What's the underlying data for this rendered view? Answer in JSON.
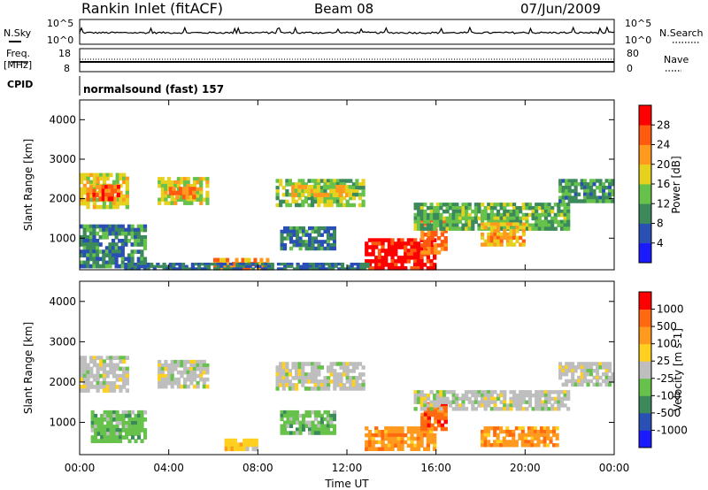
{
  "header": {
    "station": "Rankin Inlet (fitACF)",
    "beam": "Beam 08",
    "date": "07/Jun/2009"
  },
  "strip": {
    "nsky_label": "N.Sky",
    "nsearch_label": "N.Search",
    "nsky_ticks": [
      "10^5",
      "10^0"
    ],
    "nsearch_ticks": [
      "10^5",
      "10^0"
    ],
    "freq_label_1": "Freq.",
    "freq_label_2": "[MHz]",
    "freq_ticks": [
      "18",
      "8"
    ],
    "nave_label": "Nave",
    "nave_ticks": [
      "80",
      "0"
    ],
    "cpid_label": "CPID",
    "cpid_text": "normalsound (fast) 157"
  },
  "colors": {
    "power": [
      "#1a1aff",
      "#2a4fb5",
      "#3c8a5c",
      "#66c24a",
      "#e6d21e",
      "#ff9a1e",
      "#ff5a10",
      "#ff0000"
    ],
    "velocity": [
      "#ff0000",
      "#ff6a10",
      "#ff9a1e",
      "#ffd020",
      "#bebebe",
      "#66c24a",
      "#3c8a5c",
      "#2a4fb5",
      "#1a1aff"
    ]
  },
  "chart_data": [
    {
      "type": "heatmap",
      "title": "",
      "ylabel": "Slant Range [km]",
      "xlabel": "",
      "ylim": [
        200,
        4500
      ],
      "yticks": [
        "4000",
        "3000",
        "2000",
        "1000"
      ],
      "yvalues": [
        4000,
        3000,
        2000,
        1000
      ],
      "xlim": [
        0,
        24
      ],
      "colorbar": {
        "label": "Power [dB]",
        "ticks": [
          "28",
          "24",
          "20",
          "16",
          "12",
          "8",
          "4"
        ],
        "range": [
          0,
          32
        ]
      },
      "regions": [
        {
          "t": [
            0.0,
            2.2
          ],
          "r": [
            1750,
            2650
          ],
          "v": 18
        },
        {
          "t": [
            0.3,
            1.8
          ],
          "r": [
            1950,
            2350
          ],
          "v": 26
        },
        {
          "t": [
            3.5,
            5.8
          ],
          "r": [
            1850,
            2550
          ],
          "v": 17
        },
        {
          "t": [
            4.0,
            5.2
          ],
          "r": [
            2000,
            2300
          ],
          "v": 24
        },
        {
          "t": [
            8.8,
            12.8
          ],
          "r": [
            1800,
            2500
          ],
          "v": 14
        },
        {
          "t": [
            9.5,
            12.2
          ],
          "r": [
            2050,
            2350
          ],
          "v": 19
        },
        {
          "t": [
            12.8,
            16.0
          ],
          "r": [
            200,
            1000
          ],
          "v": 30
        },
        {
          "t": [
            15.3,
            16.5
          ],
          "r": [
            600,
            1500
          ],
          "v": 24
        },
        {
          "t": [
            15.0,
            22.0
          ],
          "r": [
            1200,
            1900
          ],
          "v": 13
        },
        {
          "t": [
            18.0,
            20.0
          ],
          "r": [
            800,
            1400
          ],
          "v": 21
        },
        {
          "t": [
            21.5,
            24.0
          ],
          "r": [
            1900,
            2500
          ],
          "v": 11
        },
        {
          "t": [
            9.0,
            11.5
          ],
          "r": [
            700,
            1300
          ],
          "v": 9
        },
        {
          "t": [
            0.0,
            3.0
          ],
          "r": [
            250,
            1350
          ],
          "v": 10
        },
        {
          "t": [
            6.0,
            8.5
          ],
          "r": [
            200,
            500
          ],
          "v": 23
        },
        {
          "t": [
            2.0,
            13.0
          ],
          "r": [
            200,
            380
          ],
          "v": 8
        }
      ]
    },
    {
      "type": "heatmap",
      "title": "",
      "ylabel": "Slant Range [km]",
      "xlabel": "Time UT",
      "ylim": [
        200,
        4500
      ],
      "yticks": [
        "4000",
        "3000",
        "2000",
        "1000"
      ],
      "yvalues": [
        4000,
        3000,
        2000,
        1000
      ],
      "xlim": [
        0,
        24
      ],
      "xticks": [
        "00:00",
        "04:00",
        "08:00",
        "12:00",
        "16:00",
        "20:00",
        "00:00"
      ],
      "xvalues": [
        0,
        4,
        8,
        12,
        16,
        20,
        24
      ],
      "colorbar": {
        "label": "Velocity [m s-1]",
        "ticks": [
          "1000",
          "500",
          "100",
          "25",
          "-25",
          "-100",
          "-500",
          "-1000"
        ]
      },
      "regions": [
        {
          "t": [
            0.0,
            2.2
          ],
          "r": [
            1750,
            2650
          ],
          "v": 4
        },
        {
          "t": [
            3.5,
            5.8
          ],
          "r": [
            1850,
            2550
          ],
          "v": 4
        },
        {
          "t": [
            8.8,
            12.8
          ],
          "r": [
            1800,
            2500
          ],
          "v": 4
        },
        {
          "t": [
            12.8,
            16.0
          ],
          "r": [
            300,
            900
          ],
          "v": 2
        },
        {
          "t": [
            15.3,
            16.5
          ],
          "r": [
            800,
            1500
          ],
          "v": 1
        },
        {
          "t": [
            15.0,
            22.0
          ],
          "r": [
            1300,
            1800
          ],
          "v": 4
        },
        {
          "t": [
            18.0,
            21.5
          ],
          "r": [
            400,
            900
          ],
          "v": 2
        },
        {
          "t": [
            21.5,
            24.0
          ],
          "r": [
            1900,
            2500
          ],
          "v": 4
        },
        {
          "t": [
            9.0,
            11.5
          ],
          "r": [
            700,
            1300
          ],
          "v": 5
        },
        {
          "t": [
            0.5,
            3.0
          ],
          "r": [
            500,
            1300
          ],
          "v": 5
        },
        {
          "t": [
            6.5,
            8.0
          ],
          "r": [
            300,
            600
          ],
          "v": 3
        }
      ]
    }
  ]
}
